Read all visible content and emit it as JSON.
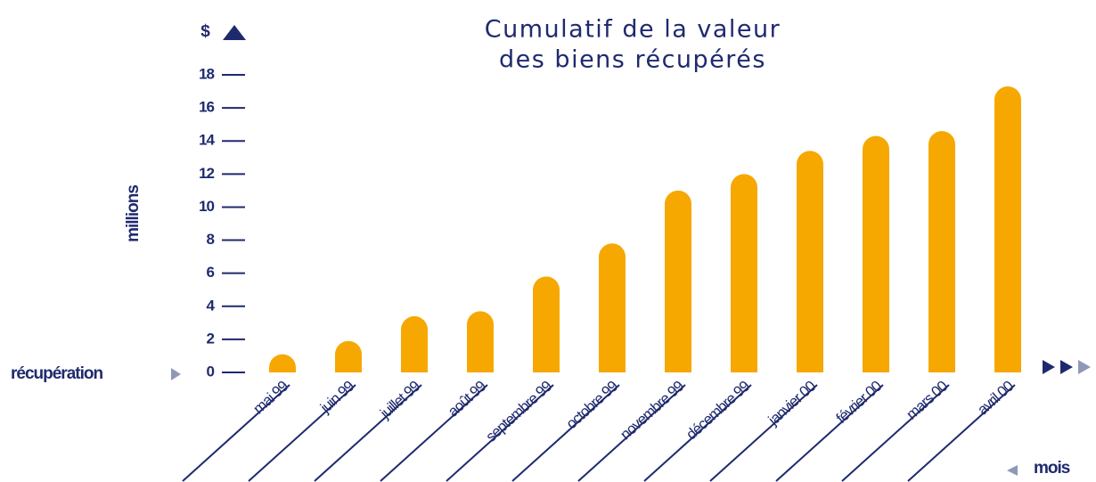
{
  "chart_data": {
    "type": "bar",
    "title_lines": [
      "Cumulatif de la valeur",
      "des biens récupérés"
    ],
    "unit_label": "$",
    "y_axis_label": "millions",
    "x_axis_label": "mois",
    "baseline_label": "récupération",
    "categories": [
      "mai 99",
      "juin 99",
      "juillet 99",
      "août 99",
      "septembre 99",
      "octobre 99",
      "novembre 99",
      "décembre 99",
      "janvier 00",
      "février 00",
      "mars 00",
      "avril 00"
    ],
    "values": [
      1.1,
      1.9,
      3.4,
      3.7,
      5.8,
      7.8,
      11.0,
      12.0,
      13.4,
      14.3,
      14.6,
      17.3
    ],
    "color": "#f6a800",
    "ylim": [
      0,
      18
    ],
    "yticks": [
      0,
      2,
      4,
      6,
      8,
      10,
      12,
      14,
      16,
      18
    ]
  }
}
